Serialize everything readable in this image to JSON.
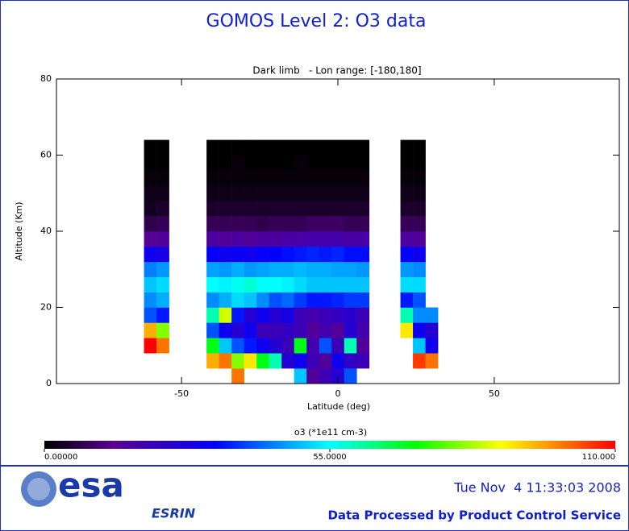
{
  "chart_data": {
    "type": "heatmap",
    "title": "GOMOS Level 2: O3 data",
    "subtitle": "Dark limb   - Lon range: [-180,180]",
    "x_label": "Latitude (deg)",
    "y_label": "Altitude (Km)",
    "xlim": [
      -90,
      90
    ],
    "xticks": [
      -50,
      0,
      50
    ],
    "ylim": [
      0,
      80
    ],
    "yticks": [
      0,
      20,
      40,
      60,
      80
    ],
    "x": [
      -60,
      -56,
      -40,
      -36,
      -32,
      -28,
      -24,
      -20,
      -16,
      -12,
      -8,
      -4,
      0,
      4,
      8,
      22,
      26,
      30
    ],
    "y": [
      2,
      6,
      10,
      14,
      18,
      22,
      26,
      30,
      34,
      38,
      42,
      46,
      50,
      54,
      58,
      62
    ],
    "values": [
      [
        null,
        null,
        110,
        95,
        40,
        45,
        50,
        44,
        30,
        14,
        7,
        3,
        2,
        1,
        0,
        0
      ],
      [
        null,
        null,
        100,
        80,
        35,
        48,
        52,
        46,
        28,
        15,
        8,
        4,
        2,
        1,
        0,
        0
      ],
      [
        null,
        95,
        70,
        40,
        60,
        45,
        55,
        47,
        32,
        16,
        8,
        4,
        2,
        1,
        0,
        0
      ],
      [
        null,
        100,
        50,
        30,
        85,
        48,
        54,
        46,
        30,
        15,
        8,
        4,
        2,
        1,
        0,
        0
      ],
      [
        100,
        80,
        40,
        25,
        35,
        52,
        56,
        48,
        31,
        16,
        8,
        4,
        2,
        1,
        1,
        0
      ],
      [
        null,
        90,
        35,
        30,
        25,
        50,
        58,
        46,
        30,
        15,
        8,
        4,
        2,
        1,
        0,
        0
      ],
      [
        null,
        70,
        30,
        20,
        30,
        45,
        55,
        47,
        32,
        16,
        7,
        4,
        2,
        1,
        0,
        0
      ],
      [
        null,
        60,
        25,
        20,
        25,
        40,
        55,
        48,
        33,
        16,
        8,
        4,
        2,
        1,
        0,
        0
      ],
      [
        null,
        25,
        20,
        22,
        28,
        42,
        54,
        48,
        34,
        17,
        8,
        4,
        2,
        1,
        0,
        0
      ],
      [
        50,
        30,
        70,
        20,
        20,
        38,
        52,
        49,
        35,
        17,
        8,
        4,
        2,
        1,
        1,
        0
      ],
      [
        15,
        20,
        18,
        15,
        18,
        35,
        50,
        48,
        36,
        18,
        9,
        4,
        2,
        1,
        0,
        0
      ],
      [
        20,
        15,
        40,
        18,
        20,
        35,
        50,
        48,
        35,
        18,
        9,
        4,
        2,
        1,
        0,
        0
      ],
      [
        25,
        30,
        20,
        15,
        22,
        36,
        50,
        47,
        36,
        18,
        9,
        4,
        2,
        1,
        0,
        0
      ],
      [
        40,
        22,
        60,
        25,
        24,
        38,
        50,
        47,
        34,
        17,
        8,
        4,
        2,
        1,
        0,
        0
      ],
      [
        null,
        20,
        15,
        18,
        20,
        38,
        50,
        46,
        34,
        17,
        8,
        4,
        2,
        1,
        0,
        0
      ],
      [
        null,
        null,
        null,
        90,
        60,
        35,
        52,
        46,
        32,
        16,
        8,
        4,
        2,
        1,
        0,
        0
      ],
      [
        null,
        105,
        50,
        30,
        45,
        40,
        52,
        45,
        30,
        15,
        8,
        4,
        2,
        1,
        0,
        0
      ],
      [
        null,
        100,
        30,
        25,
        45,
        null,
        null,
        null,
        null,
        null,
        null,
        null,
        null,
        null,
        null,
        null
      ]
    ],
    "colorbar_label": "o3 (*1e11 cm-3)",
    "colorbar_lim": [
      0,
      110
    ],
    "colorbar_ticks": [
      {
        "value": 0,
        "label": "0.00000"
      },
      {
        "value": 55,
        "label": "55.0000"
      },
      {
        "value": 110,
        "label": "110.000"
      }
    ]
  },
  "footer": {
    "logo": "esa",
    "logo_sub": "ESRIN",
    "timestamp": "Tue Nov  4 11:33:03 2008",
    "credit": "Data Processed by Product Control Service"
  }
}
